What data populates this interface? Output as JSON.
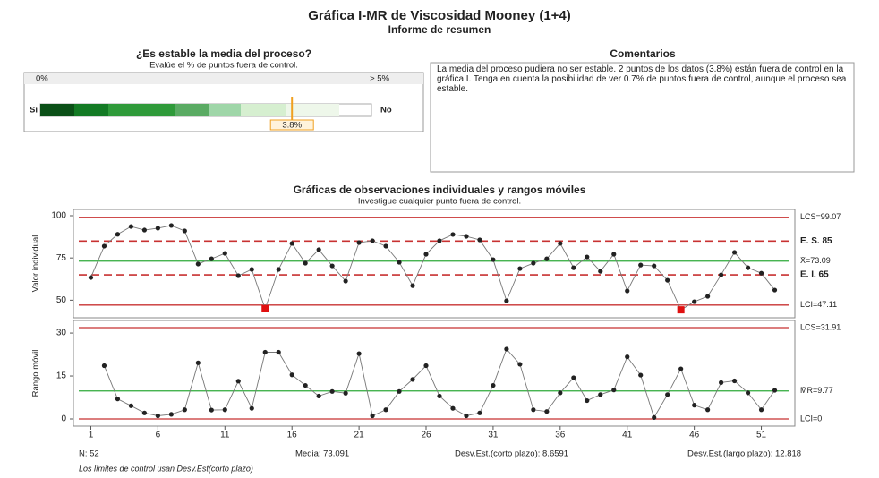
{
  "header": {
    "title": "Gráfica I-MR de Viscosidad Mooney (1+4)",
    "subtitle": "Informe de resumen"
  },
  "gauge": {
    "title": "¿Es estable la media del proceso?",
    "subtitle": "Evalúe el % de puntos fuera de control.",
    "min_label": "0%",
    "max_label": "> 5%",
    "left_label": "Sí",
    "right_label": "No",
    "xlim": [
      0,
      5
    ],
    "value": 3.8,
    "value_label": "3.8%"
  },
  "comments": {
    "title": "Comentarios",
    "text": "La media del proceso pudiera no ser estable. 2 puntos de los datos (3.8%) están fuera de control en la gráfica I. Tenga en cuenta la posibilidad de ver 0.7% de puntos fuera de control, aunque el proceso sea estable."
  },
  "charts_section": {
    "title": "Gráficas de observaciones individuales y rangos móviles",
    "subtitle": "Investigue cualquier punto fuera de control."
  },
  "chart_data": [
    {
      "type": "line",
      "ylabel": "Valor individual",
      "color": "#222222",
      "x": [
        1,
        2,
        3,
        4,
        5,
        6,
        7,
        8,
        9,
        10,
        11,
        12,
        13,
        14,
        15,
        16,
        17,
        18,
        19,
        20,
        21,
        22,
        23,
        24,
        25,
        26,
        27,
        28,
        29,
        30,
        31,
        32,
        33,
        34,
        35,
        36,
        37,
        38,
        39,
        40,
        41,
        42,
        43,
        44,
        45,
        46,
        47,
        48,
        49,
        50,
        51,
        52
      ],
      "values": [
        63.4,
        82,
        89,
        93.6,
        91.5,
        92.6,
        94.2,
        91,
        71.4,
        74.5,
        77.7,
        64.5,
        68.2,
        44.9,
        68.2,
        83.6,
        71.9,
        79.9,
        70.3,
        61.3,
        84.1,
        85.2,
        82,
        72.4,
        58.6,
        77.2,
        85.2,
        88.9,
        87.8,
        85.7,
        74,
        49.6,
        68.7,
        71.9,
        74.5,
        83.6,
        69.2,
        75.6,
        67.1,
        77.2,
        55.5,
        70.8,
        70.3,
        61.8,
        44.3,
        49.1,
        52.3,
        65,
        78.3,
        69.2,
        66,
        56
      ],
      "xlim": [
        -0.3,
        53.5
      ],
      "ylim": [
        39.6,
        103.7
      ],
      "yticks": [
        50,
        75,
        100
      ],
      "limits": [
        {
          "label": "LCS=99.07",
          "value": 99.07,
          "kind": "ucl"
        },
        {
          "label": "E. S. 85",
          "value": 85,
          "kind": "spec"
        },
        {
          "label": "X̄=73.09",
          "value": 73.09,
          "kind": "center"
        },
        {
          "label": "E. I. 65",
          "value": 65,
          "kind": "spec"
        },
        {
          "label": "LCI=47.11",
          "value": 47.11,
          "kind": "lcl"
        }
      ]
    },
    {
      "type": "line",
      "ylabel": "Rango móvil",
      "color": "#222222",
      "x": [
        1,
        2,
        3,
        4,
        5,
        6,
        7,
        8,
        9,
        10,
        11,
        12,
        13,
        14,
        15,
        16,
        17,
        18,
        19,
        20,
        21,
        22,
        23,
        24,
        25,
        26,
        27,
        28,
        29,
        30,
        31,
        32,
        33,
        34,
        35,
        36,
        37,
        38,
        39,
        40,
        41,
        42,
        43,
        44,
        45,
        46,
        47,
        48,
        49,
        50,
        51,
        52
      ],
      "values": [
        null,
        18.6,
        7,
        4.6,
        2.1,
        1.1,
        1.6,
        3.2,
        19.6,
        3.1,
        3.2,
        13.2,
        3.7,
        23.3,
        23.3,
        15.4,
        11.7,
        8,
        9.6,
        9,
        22.8,
        1.1,
        3.2,
        9.6,
        13.8,
        18.6,
        8,
        3.7,
        1.1,
        2.1,
        11.7,
        24.4,
        19.1,
        3.2,
        2.6,
        9.1,
        14.4,
        6.4,
        8.5,
        10.1,
        21.7,
        15.3,
        0.5,
        8.5,
        17.5,
        4.8,
        3.2,
        12.7,
        13.3,
        9.1,
        3.2,
        10
      ],
      "xlim": [
        -0.3,
        53.5
      ],
      "ylim": [
        -2.5,
        34.4
      ],
      "yticks": [
        0,
        15,
        30
      ],
      "xticks": [
        1,
        6,
        11,
        16,
        21,
        26,
        31,
        36,
        41,
        46,
        51
      ],
      "limits": [
        {
          "label": "LCS=31.91",
          "value": 31.91,
          "kind": "ucl"
        },
        {
          "label": "M̄R=9.77",
          "value": 9.77,
          "kind": "center"
        },
        {
          "label": "LCI=0",
          "value": 0,
          "kind": "lcl"
        }
      ]
    }
  ],
  "stats": [
    "N: 52",
    "Media: 73.091",
    "Desv.Est.(corto plazo): 8.6591",
    "Desv.Est.(largo plazo): 12.818"
  ],
  "footnote": "Los límites de control usan Desv.Est(corto plazo)"
}
